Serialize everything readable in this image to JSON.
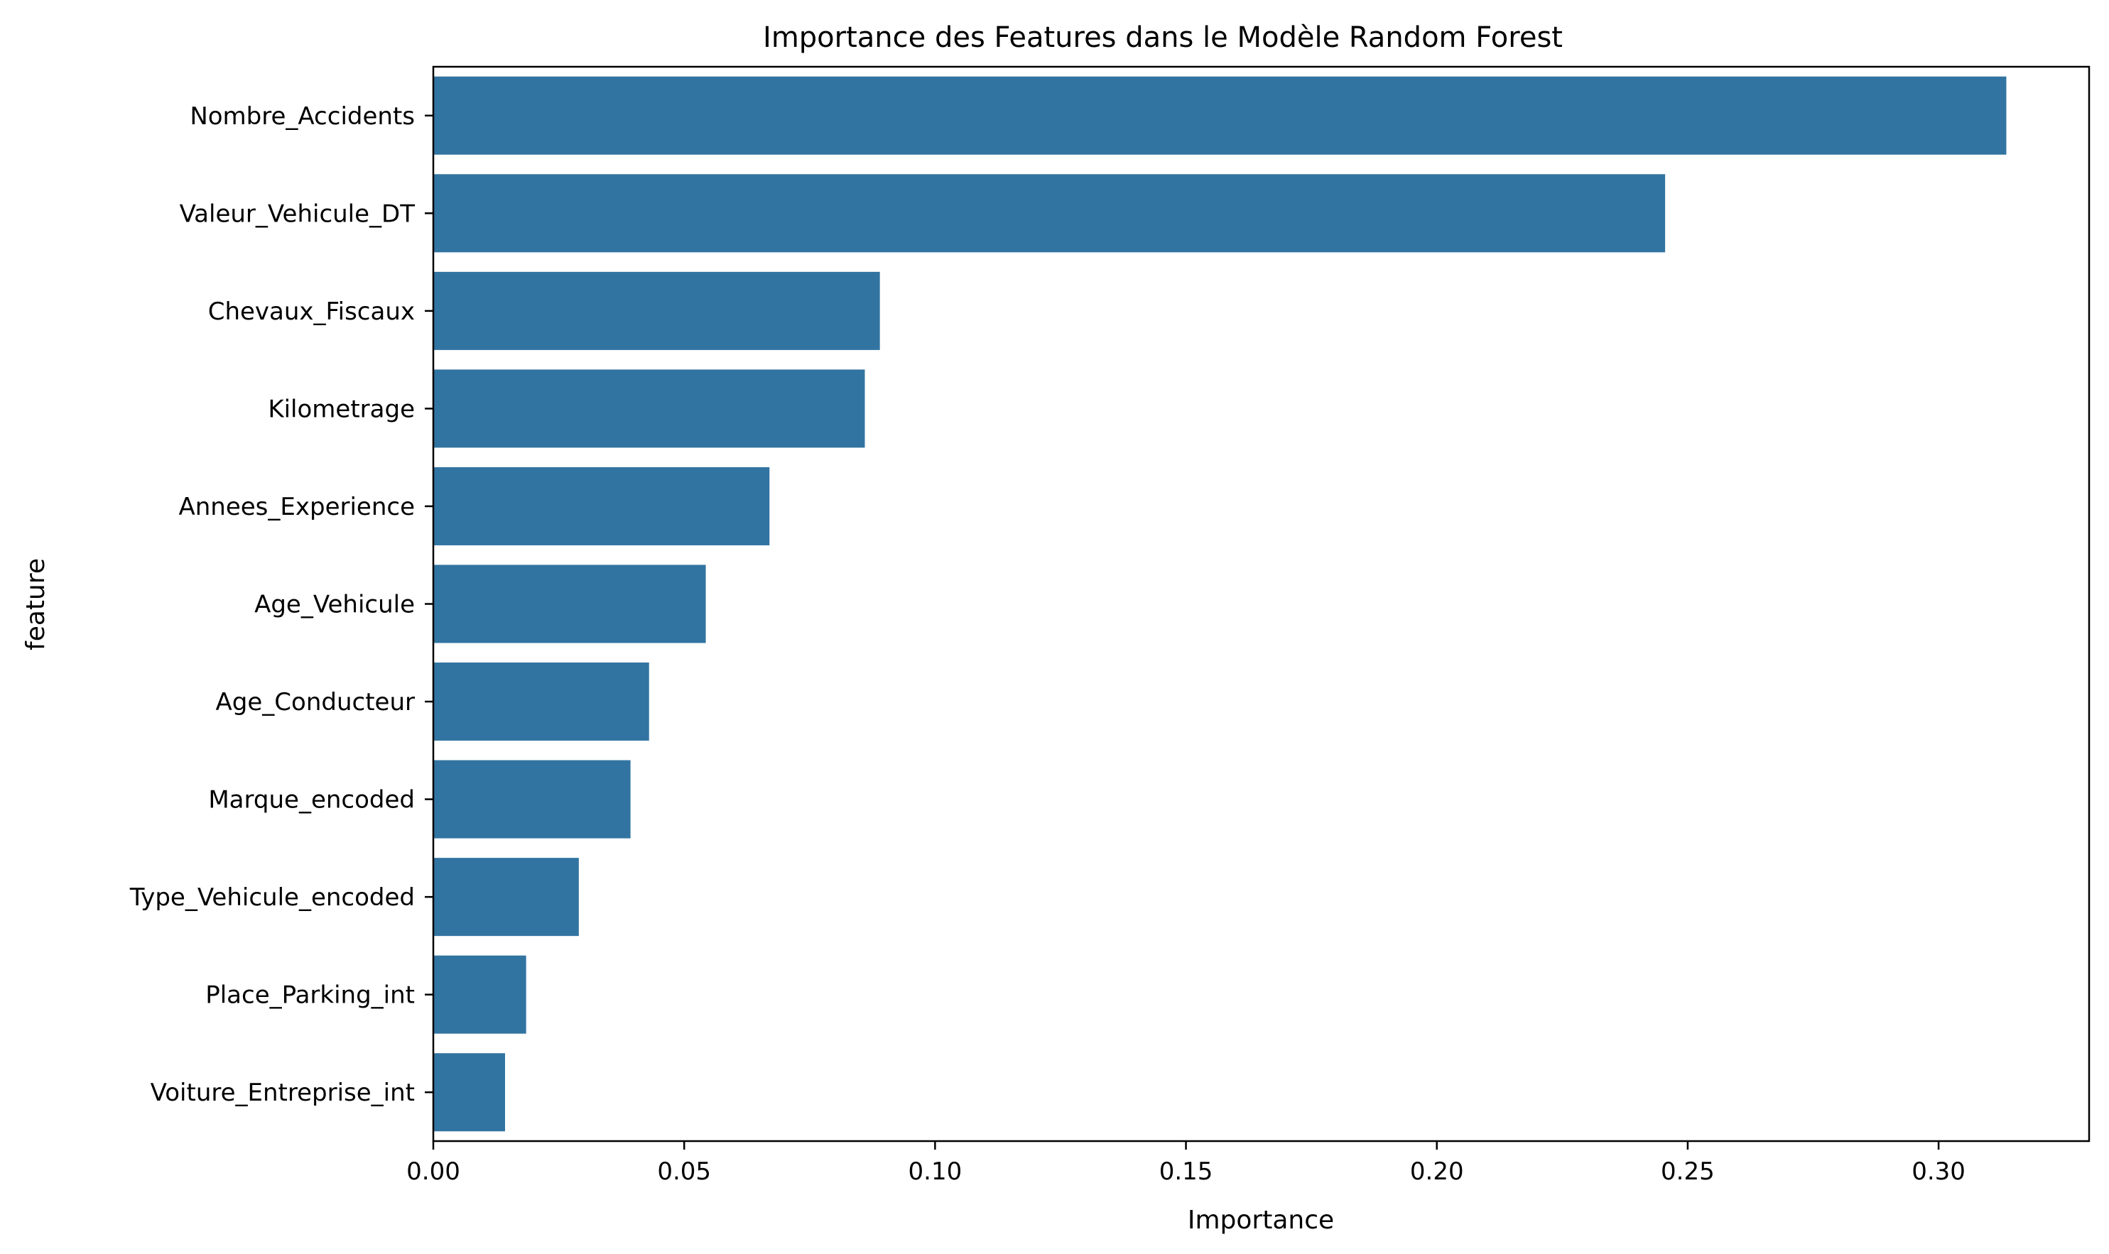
{
  "chart_data": {
    "type": "bar",
    "orientation": "horizontal",
    "title": "Importance des Features dans le Modèle Random Forest",
    "xlabel": "Importance",
    "ylabel": "feature",
    "categories": [
      "Nombre_Accidents",
      "Valeur_Vehicule_DT",
      "Chevaux_Fiscaux",
      "Kilometrage",
      "Annees_Experience",
      "Age_Vehicule",
      "Age_Conducteur",
      "Marque_encoded",
      "Type_Vehicule_encoded",
      "Place_Parking_int",
      "Voiture_Entreprise_int"
    ],
    "values": [
      0.3135,
      0.2455,
      0.089,
      0.086,
      0.067,
      0.0543,
      0.043,
      0.0393,
      0.029,
      0.0185,
      0.0143
    ],
    "xlim": [
      0,
      0.33
    ],
    "xticks": [
      "0.00",
      "0.05",
      "0.10",
      "0.15",
      "0.20",
      "0.25",
      "0.30"
    ],
    "xtick_values": [
      0,
      0.05,
      0.1,
      0.15,
      0.2,
      0.25,
      0.3
    ],
    "grid": false,
    "bar_color": "#3274a1"
  }
}
